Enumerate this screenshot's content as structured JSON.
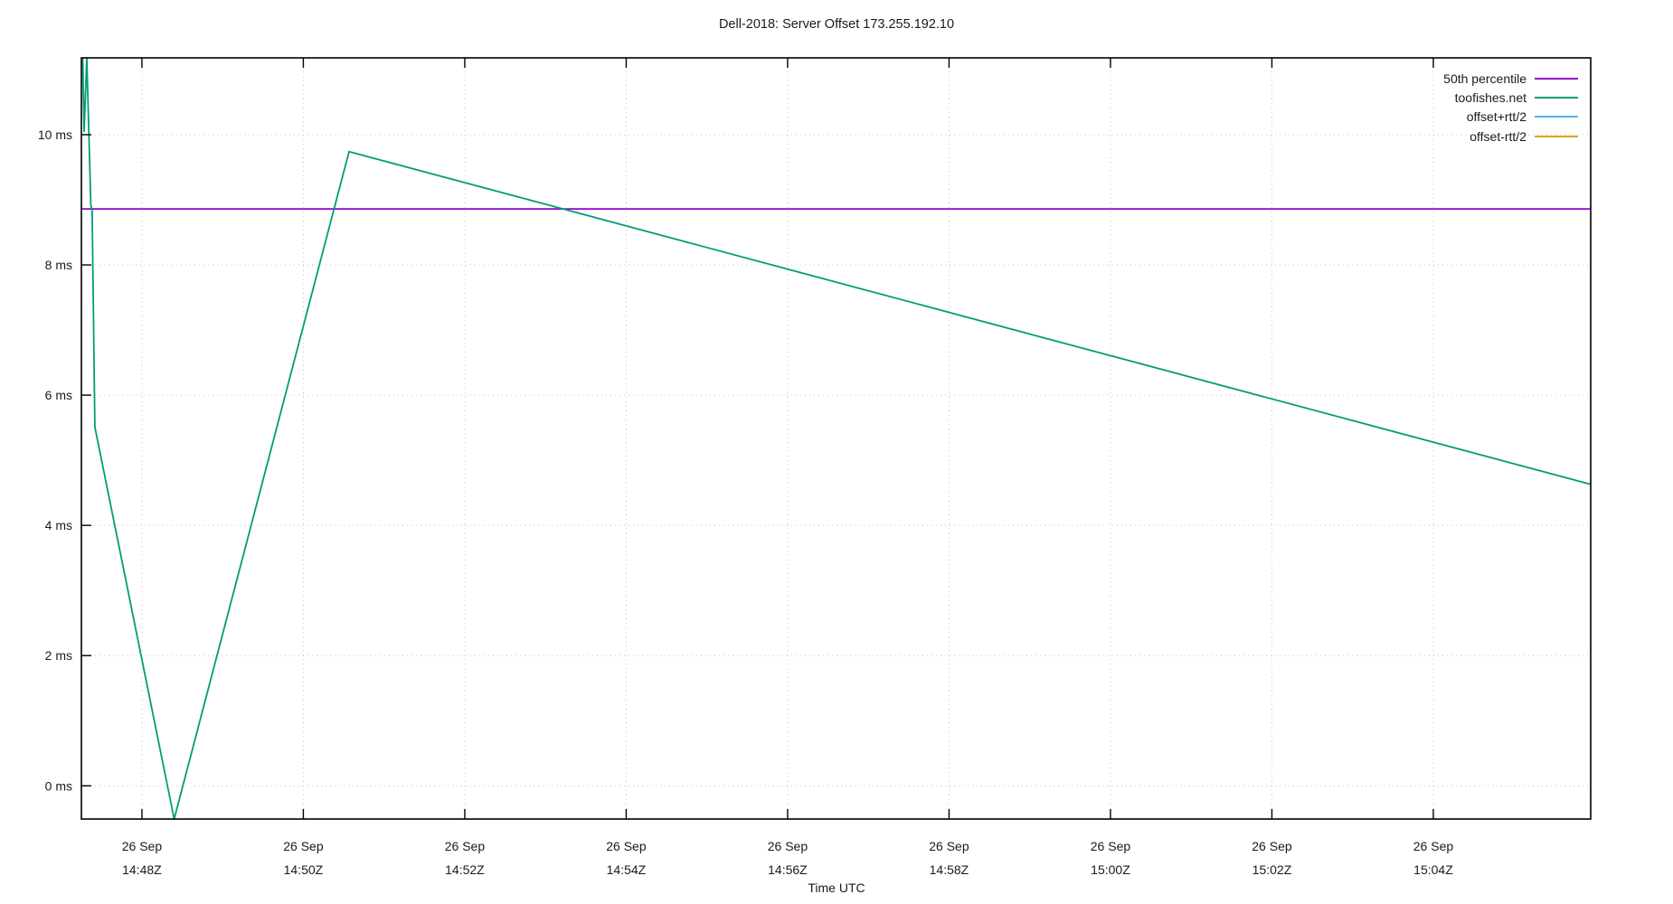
{
  "chart_data": {
    "type": "line",
    "title": "Dell-2018: Server Offset 173.255.192.10",
    "xlabel": "Time UTC",
    "ylabel": "",
    "xlim": [
      "14:47:15",
      "15:05:57"
    ],
    "ylim": [
      -0.51,
      11.18
    ],
    "grid": {
      "shown": true,
      "style": "dotted"
    },
    "legend_position": "top-right",
    "y_ticks": [
      {
        "v": 0,
        "label": "0 ms"
      },
      {
        "v": 2,
        "label": "2 ms"
      },
      {
        "v": 4,
        "label": "4 ms"
      },
      {
        "v": 6,
        "label": "6 ms"
      },
      {
        "v": 8,
        "label": "8 ms"
      },
      {
        "v": 10,
        "label": "10 ms"
      }
    ],
    "x_ticks": [
      {
        "t": "14:48:00",
        "line1": "26 Sep",
        "line2": "14:48Z"
      },
      {
        "t": "14:50:00",
        "line1": "26 Sep",
        "line2": "14:50Z"
      },
      {
        "t": "14:52:00",
        "line1": "26 Sep",
        "line2": "14:52Z"
      },
      {
        "t": "14:54:00",
        "line1": "26 Sep",
        "line2": "14:54Z"
      },
      {
        "t": "14:56:00",
        "line1": "26 Sep",
        "line2": "14:56Z"
      },
      {
        "t": "14:58:00",
        "line1": "26 Sep",
        "line2": "14:58Z"
      },
      {
        "t": "15:00:00",
        "line1": "26 Sep",
        "line2": "15:00Z"
      },
      {
        "t": "15:02:00",
        "line1": "26 Sep",
        "line2": "15:02Z"
      },
      {
        "t": "15:04:00",
        "line1": "26 Sep",
        "line2": "15:04Z"
      }
    ],
    "series": [
      {
        "name": "50th percentile",
        "color": "#9400d3",
        "points": [
          [
            "14:47:15",
            8.86
          ],
          [
            "15:05:57",
            8.86
          ]
        ]
      },
      {
        "name": "toofishes.net",
        "color": "#009e73",
        "points": [
          [
            "14:47:16",
            11.18
          ],
          [
            "14:47:17",
            10.05
          ],
          [
            "14:47:19",
            11.18
          ],
          [
            "14:47:22",
            8.93
          ],
          [
            "14:47:23",
            8.82
          ],
          [
            "14:47:25",
            5.51
          ],
          [
            "14:48:24",
            -0.51
          ],
          [
            "14:50:34",
            9.74
          ],
          [
            "15:05:57",
            4.63
          ]
        ]
      },
      {
        "name": "offset+rtt/2",
        "color": "#56b4e9",
        "points": []
      },
      {
        "name": "offset-rtt/2",
        "color": "#e69f00",
        "points": []
      }
    ]
  }
}
